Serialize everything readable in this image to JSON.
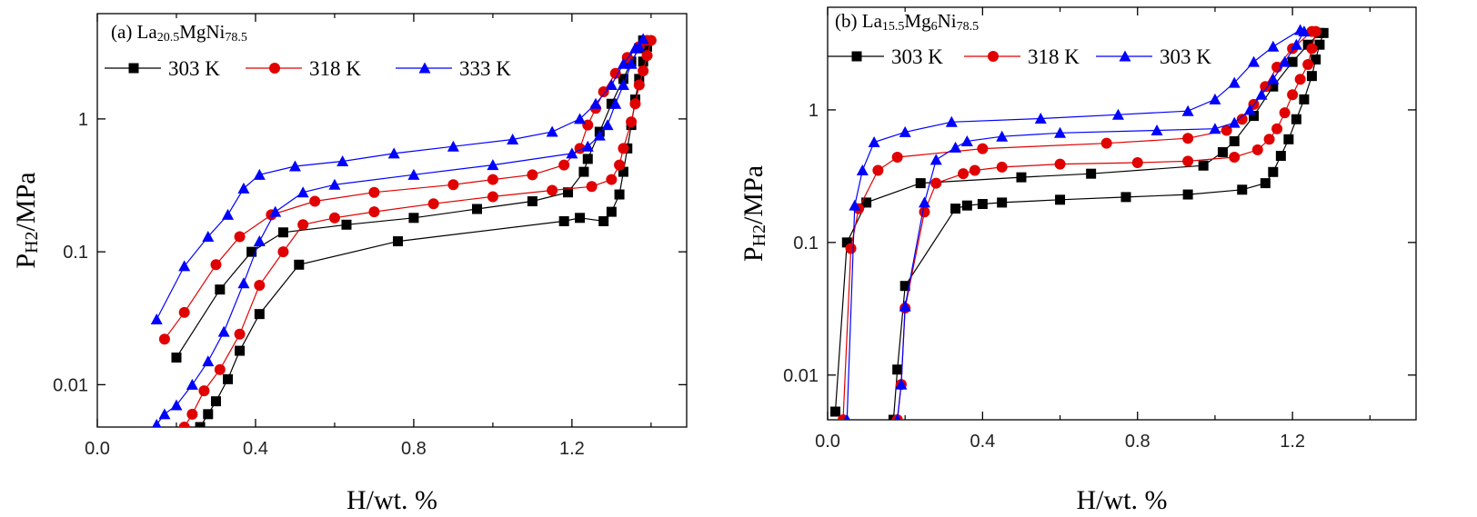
{
  "chart_data": [
    {
      "type": "line",
      "ylog": true,
      "title": [
        {
          "text": "(a) La"
        },
        {
          "text": "20.5",
          "sub": true
        },
        {
          "text": "MgNi"
        },
        {
          "text": "78.5",
          "sub": true
        }
      ],
      "xlabel": "H/wt. %",
      "ylabel": [
        {
          "text": "P"
        },
        {
          "text": "H2",
          "sub": true
        },
        {
          "text": "/MPa"
        }
      ],
      "xlim": [
        0,
        1.49
      ],
      "ylim": [
        0.0048,
        6.2
      ],
      "xticks": [
        {
          "value": 0,
          "label": "0.0"
        },
        0.4,
        0.8,
        1.2
      ],
      "xminorticks": [
        0.2,
        0.6,
        1.0,
        1.4
      ],
      "yticks": [
        0.01,
        0.1,
        1
      ],
      "series": [
        {
          "name": "303 K",
          "color": "#000000",
          "marker": "square",
          "x": [
            0.2,
            0.31,
            0.39,
            0.47,
            0.63,
            0.8,
            0.96,
            1.1,
            1.19,
            1.23,
            1.24,
            1.27,
            1.3,
            1.33,
            1.35,
            1.37,
            1.38,
            1.39,
            1.38,
            1.37,
            1.36,
            1.35,
            1.34,
            1.33,
            1.32,
            1.3,
            1.28,
            1.22,
            1.18,
            0.76,
            0.51,
            0.41,
            0.36,
            0.33,
            0.3,
            0.28,
            0.26
          ],
          "values": [
            0.016,
            0.052,
            0.1,
            0.14,
            0.16,
            0.18,
            0.21,
            0.24,
            0.28,
            0.4,
            0.5,
            0.8,
            1.3,
            2.0,
            2.7,
            3.4,
            3.9,
            3.5,
            2.7,
            2.0,
            1.4,
            0.9,
            0.6,
            0.4,
            0.27,
            0.2,
            0.17,
            0.18,
            0.17,
            0.12,
            0.08,
            0.034,
            0.018,
            0.011,
            0.0075,
            0.006,
            0.0048
          ]
        },
        {
          "name": "318 K",
          "color": "#e00000",
          "marker": "circle",
          "x": [
            0.17,
            0.22,
            0.3,
            0.36,
            0.44,
            0.55,
            0.7,
            0.9,
            1.0,
            1.1,
            1.18,
            1.22,
            1.24,
            1.26,
            1.28,
            1.31,
            1.34,
            1.37,
            1.39,
            1.4,
            1.39,
            1.38,
            1.37,
            1.36,
            1.35,
            1.33,
            1.32,
            1.3,
            1.25,
            1.15,
            1.0,
            0.85,
            0.7,
            0.6,
            0.52,
            0.47,
            0.41,
            0.36,
            0.31,
            0.27,
            0.24,
            0.22
          ],
          "values": [
            0.022,
            0.035,
            0.08,
            0.13,
            0.19,
            0.24,
            0.28,
            0.32,
            0.35,
            0.38,
            0.45,
            0.6,
            0.9,
            1.2,
            1.6,
            2.2,
            2.9,
            3.5,
            3.9,
            3.9,
            3.0,
            2.3,
            1.8,
            1.3,
            0.95,
            0.6,
            0.45,
            0.35,
            0.31,
            0.29,
            0.26,
            0.23,
            0.2,
            0.18,
            0.16,
            0.1,
            0.056,
            0.024,
            0.013,
            0.009,
            0.006,
            0.0048
          ]
        },
        {
          "name": "333 K",
          "color": "#0000ff",
          "marker": "triangle",
          "x": [
            0.15,
            0.22,
            0.28,
            0.33,
            0.37,
            0.41,
            0.5,
            0.62,
            0.75,
            0.9,
            1.05,
            1.15,
            1.22,
            1.26,
            1.3,
            1.33,
            1.36,
            1.38,
            1.37,
            1.35,
            1.33,
            1.31,
            1.29,
            1.27,
            1.24,
            1.2,
            1.0,
            0.8,
            0.6,
            0.52,
            0.45,
            0.41,
            0.37,
            0.32,
            0.28,
            0.24,
            0.2,
            0.17,
            0.15
          ],
          "values": [
            0.031,
            0.078,
            0.13,
            0.19,
            0.3,
            0.38,
            0.44,
            0.48,
            0.55,
            0.62,
            0.7,
            0.8,
            1.0,
            1.3,
            1.8,
            2.6,
            3.4,
            4.0,
            3.5,
            2.6,
            1.8,
            1.3,
            0.9,
            0.75,
            0.62,
            0.55,
            0.45,
            0.38,
            0.32,
            0.28,
            0.2,
            0.12,
            0.058,
            0.025,
            0.015,
            0.01,
            0.007,
            0.006,
            0.005
          ]
        }
      ]
    },
    {
      "type": "line",
      "ylog": true,
      "title": [
        {
          "text": "(b) La"
        },
        {
          "text": "15.5",
          "sub": true
        },
        {
          "text": "Mg"
        },
        {
          "text": "6",
          "sub": true
        },
        {
          "text": "Ni"
        },
        {
          "text": "78.5",
          "sub": true
        }
      ],
      "xlabel": "H/wt. %",
      "ylabel": [
        {
          "text": "P"
        },
        {
          "text": "H2",
          "sub": true
        },
        {
          "text": "/MPa"
        }
      ],
      "xlim": [
        0,
        1.519
      ],
      "ylim": [
        0.0046,
        5.94
      ],
      "xticks": [
        {
          "value": 0,
          "label": "0.0"
        },
        0.4,
        0.8,
        1.2
      ],
      "xminorticks": [
        0.2,
        0.6,
        1.0,
        1.4
      ],
      "yticks": [
        0.01,
        0.1,
        1
      ],
      "series": [
        {
          "name": "303 K",
          "color": "#000000",
          "marker": "square",
          "x": [
            0.02,
            0.05,
            0.1,
            0.24,
            0.5,
            0.68,
            0.97,
            1.02,
            1.05,
            1.1,
            1.15,
            1.2,
            1.24,
            1.27,
            1.28,
            1.27,
            1.26,
            1.25,
            1.23,
            1.21,
            1.19,
            1.17,
            1.15,
            1.13,
            1.07,
            0.93,
            0.77,
            0.6,
            0.45,
            0.4,
            0.36,
            0.33,
            0.2,
            0.18,
            0.17
          ],
          "values": [
            0.0053,
            0.1,
            0.2,
            0.28,
            0.31,
            0.33,
            0.38,
            0.48,
            0.58,
            0.9,
            1.5,
            2.3,
            3.1,
            3.8,
            3.8,
            3.1,
            2.4,
            1.8,
            1.2,
            0.85,
            0.6,
            0.45,
            0.34,
            0.28,
            0.25,
            0.23,
            0.22,
            0.21,
            0.2,
            0.195,
            0.19,
            0.18,
            0.047,
            0.011,
            0.0046
          ]
        },
        {
          "name": "318 K",
          "color": "#e00000",
          "marker": "circle",
          "x": [
            0.04,
            0.06,
            0.08,
            0.13,
            0.18,
            0.4,
            0.72,
            0.93,
            1.03,
            1.07,
            1.1,
            1.13,
            1.16,
            1.2,
            1.25,
            1.26,
            1.25,
            1.24,
            1.22,
            1.2,
            1.18,
            1.16,
            1.14,
            1.11,
            1.05,
            0.93,
            0.8,
            0.6,
            0.45,
            0.38,
            0.35,
            0.28,
            0.25,
            0.2,
            0.19,
            0.18
          ],
          "values": [
            0.0046,
            0.09,
            0.18,
            0.35,
            0.44,
            0.51,
            0.56,
            0.61,
            0.7,
            0.85,
            1.1,
            1.5,
            2.1,
            2.9,
            3.9,
            3.9,
            2.9,
            2.2,
            1.7,
            1.3,
            0.95,
            0.72,
            0.6,
            0.5,
            0.44,
            0.41,
            0.4,
            0.39,
            0.37,
            0.35,
            0.33,
            0.28,
            0.17,
            0.032,
            0.0085,
            0.0046
          ]
        },
        {
          "name": "303 K",
          "color": "#0000ff",
          "marker": "triangle",
          "x": [
            0.05,
            0.07,
            0.09,
            0.12,
            0.2,
            0.32,
            0.55,
            0.75,
            0.93,
            1.0,
            1.05,
            1.1,
            1.15,
            1.22,
            1.23,
            1.21,
            1.18,
            1.15,
            1.12,
            1.09,
            1.05,
            1.0,
            0.85,
            0.6,
            0.45,
            0.36,
            0.33,
            0.28,
            0.25,
            0.2,
            0.19,
            0.18
          ],
          "values": [
            0.0046,
            0.19,
            0.35,
            0.57,
            0.68,
            0.81,
            0.86,
            0.92,
            0.98,
            1.2,
            1.6,
            2.3,
            3.0,
            4.0,
            3.9,
            3.1,
            2.3,
            1.7,
            1.3,
            1.0,
            0.8,
            0.72,
            0.7,
            0.67,
            0.63,
            0.58,
            0.52,
            0.42,
            0.2,
            0.033,
            0.0085,
            0.0046
          ]
        }
      ]
    }
  ]
}
